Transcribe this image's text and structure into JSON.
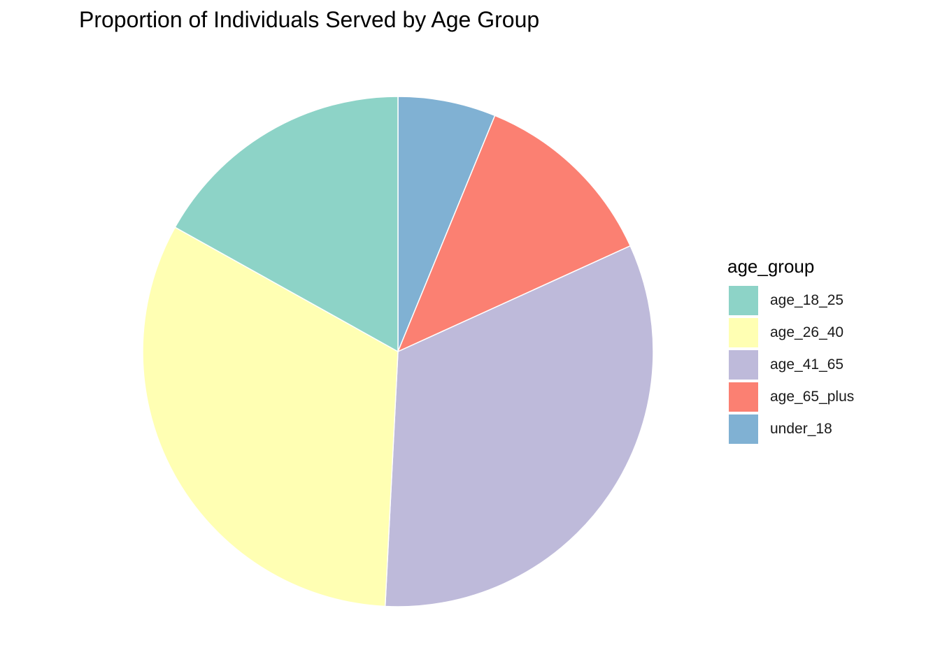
{
  "chart_data": {
    "type": "pie",
    "title": "Proportion of Individuals Served by Age Group",
    "legend_title": "age_group",
    "legend_position": "right",
    "categories": [
      "age_18_25",
      "age_26_40",
      "age_41_65",
      "age_65_plus",
      "under_18"
    ],
    "values": [
      0.169,
      0.323,
      0.326,
      0.12,
      0.062
    ],
    "colors": [
      "#8DD3C7",
      "#FFFFB3",
      "#BEBADA",
      "#FB8072",
      "#80B1D3"
    ],
    "drawing_order": [
      "under_18",
      "age_65_plus",
      "age_41_65",
      "age_26_40",
      "age_18_25"
    ]
  }
}
